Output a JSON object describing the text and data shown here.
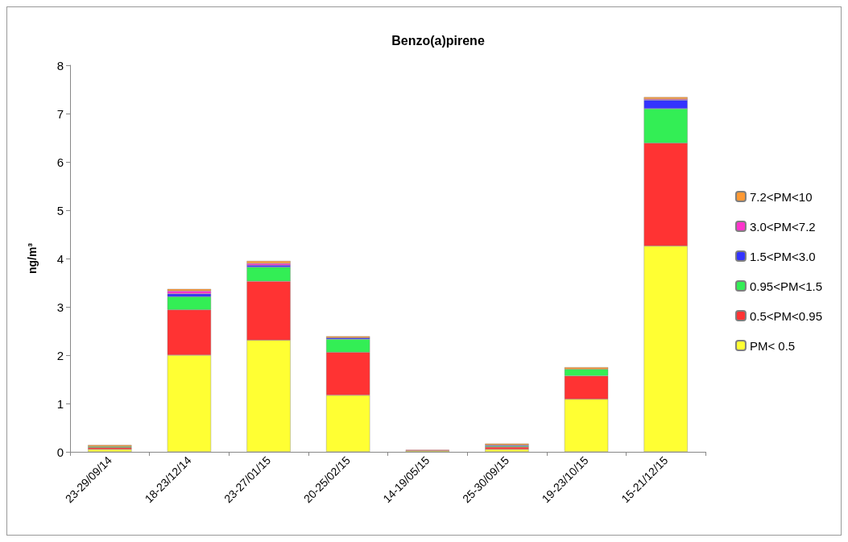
{
  "chart_data": {
    "type": "bar",
    "title": "Benzo(a)pirene",
    "ylabel": "ng/m³",
    "stacked": true,
    "grid": false,
    "legend": "right",
    "categories": [
      "23-29/09/14",
      "18-23/12/14",
      "23-27/01/15",
      "20-25/02/15",
      "14-19/05/15",
      "25-30/09/15",
      "19-23/10/15",
      "15-21/12/15"
    ],
    "ylim": [
      0,
      8
    ],
    "yticks": [
      0,
      1,
      2,
      3,
      4,
      5,
      6,
      7,
      8
    ],
    "series": [
      {
        "name": "PM< 0.5",
        "color": "#ffff33",
        "values": [
          0.05,
          2.0,
          2.31,
          1.17,
          0.02,
          0.05,
          1.09,
          4.26
        ]
      },
      {
        "name": "0.5<PM<0.95",
        "color": "#ff3333",
        "values": [
          0.04,
          0.94,
          1.22,
          0.89,
          0.02,
          0.05,
          0.48,
          2.13
        ]
      },
      {
        "name": "0.95<PM<1.5",
        "color": "#33ee55",
        "values": [
          0.02,
          0.27,
          0.29,
          0.27,
          null,
          0.02,
          0.14,
          0.71
        ]
      },
      {
        "name": "1.5<PM<3.0",
        "color": "#3333ff",
        "values": [
          null,
          0.06,
          0.04,
          0.03,
          null,
          0.02,
          null,
          0.18
        ]
      },
      {
        "name": "3.0<PM<7.2",
        "color": "#ff33cc",
        "values": [
          null,
          0.06,
          0.04,
          null,
          null,
          null,
          null,
          0.02
        ]
      },
      {
        "name": "7.2<PM<10",
        "color": "#ff9933",
        "values": [
          0.03,
          0.04,
          0.05,
          0.03,
          null,
          0.03,
          0.04,
          0.04
        ]
      }
    ]
  }
}
